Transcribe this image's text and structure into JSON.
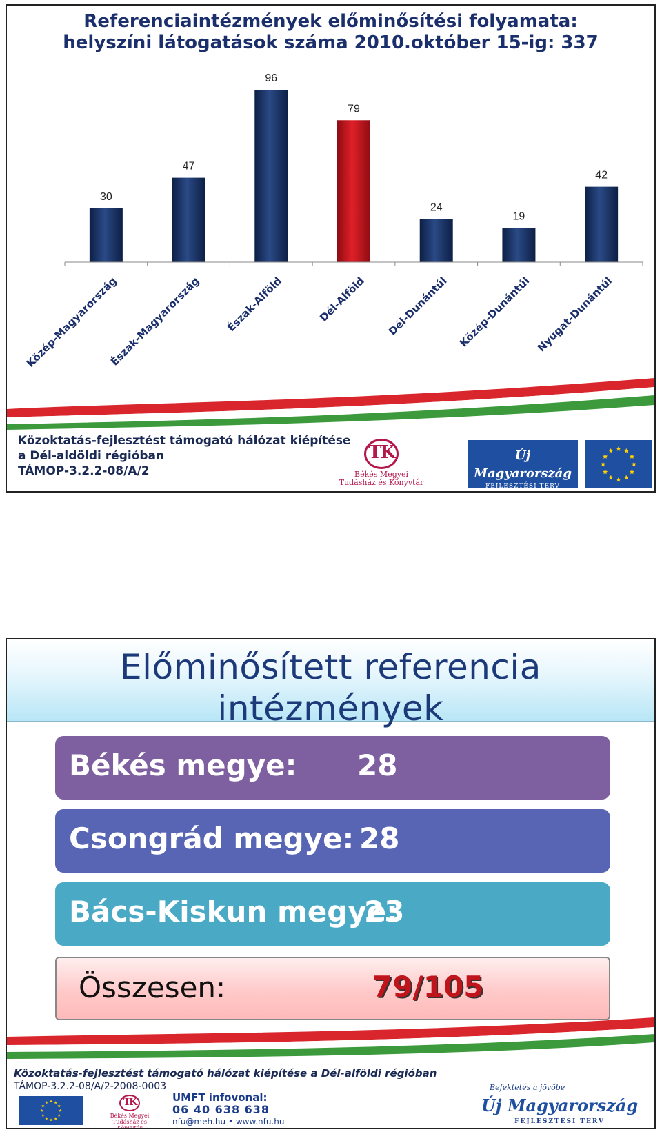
{
  "slide1": {
    "title_line1": "Referenciaintézmények előminősítési folyamata:",
    "title_line2": "helyszíni látogatások száma 2010.október 15-ig: 337",
    "footer_line1": "Közoktatás-fejlesztést támogató hálózat kiépítése",
    "footer_line2": "a Dél-aldöldi régióban",
    "footer_line3": "TÁMOP-3.2.2-08/A/2",
    "logo_bmtk_line1": "Békés Megyei",
    "logo_bmtk_line2": "Tudásház és Könyvtár",
    "logo_um_main": "Új Magyarország",
    "logo_um_sub": "FEJLESZTÉSI TERV"
  },
  "chart_data": {
    "type": "bar",
    "categories": [
      "Közép-Magyarország",
      "Észak-Magyarország",
      "Észak-Alföld",
      "Dél-Alföld",
      "Dél-Dunántúl",
      "Közép-Dunántúl",
      "Nyugat-Dunántúl"
    ],
    "values": [
      30,
      47,
      96,
      79,
      24,
      19,
      42
    ],
    "highlight_index": 3,
    "title": "Referenciaintézmények előminősítési folyamata: helyszíni látogatások száma 2010.október 15-ig: 337",
    "xlabel": "",
    "ylabel": "",
    "ylim": [
      0,
      100
    ],
    "grid": false,
    "legend": "none",
    "colors": {
      "default": "#1b3566",
      "highlight": "#c8161d"
    }
  },
  "slide2": {
    "title": "Előminősített referencia intézmények",
    "rows": [
      {
        "label": "Békés megye:",
        "value": "28",
        "color": "#7e5fa0"
      },
      {
        "label": "Csongrád megye:",
        "value": "28",
        "color": "#5864b4"
      },
      {
        "label": "Bács-Kiskun megye:",
        "value": "23",
        "color": "#4aaac6"
      }
    ],
    "total_label": "Összesen:",
    "total_value": "79/105",
    "footer_line1": "Közoktatás-fejlesztést támogató hálózat kiépítése a Dél-alföldi régióban",
    "footer_line2": "TÁMOP-3.2.2-08/A/2-2008-0003",
    "infovonal_title": "UMFT infovonal:",
    "infovonal_number": "06 40 638 638",
    "infovonal_contact": "nfu@meh.hu  •  www.nfu.hu",
    "slogan": "Befektetés a jövőbe",
    "logo_bmtk_line1": "Békés Megyei",
    "logo_bmtk_line2": "Tudásház és Könyvtár",
    "logo_um_main": "Új Magyarország",
    "logo_um_sub": "FEJLESZTÉSI TERV"
  }
}
